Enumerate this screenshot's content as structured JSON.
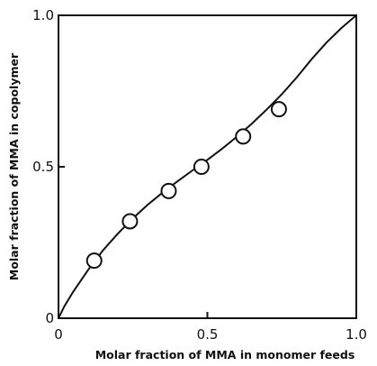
{
  "chart_data": {
    "type": "scatter",
    "title": "",
    "xlabel": "Molar fraction of MMA in monomer feeds",
    "ylabel": "Molar fraction of MMA in copolymer",
    "xlim": [
      0,
      1.0
    ],
    "ylim": [
      0,
      1.0
    ],
    "x_ticks": [
      {
        "value": 0,
        "label": "0"
      },
      {
        "value": 0.5,
        "label": "0.5"
      },
      {
        "value": 1.0,
        "label": "1.0"
      }
    ],
    "y_ticks": [
      {
        "value": 0,
        "label": "0"
      },
      {
        "value": 0.5,
        "label": "0.5"
      },
      {
        "value": 1.0,
        "label": "1.0"
      }
    ],
    "grid": false,
    "series": [
      {
        "marker": "open-circle",
        "x": [
          0.12,
          0.24,
          0.37,
          0.48,
          0.62,
          0.74
        ],
        "y": [
          0.19,
          0.32,
          0.42,
          0.5,
          0.6,
          0.69
        ]
      }
    ],
    "fitted_curve": {
      "style": "solid",
      "x": [
        0.0,
        0.02,
        0.05,
        0.1,
        0.15,
        0.2,
        0.25,
        0.3,
        0.35,
        0.4,
        0.45,
        0.5,
        0.55,
        0.6,
        0.65,
        0.7,
        0.75,
        0.8,
        0.85,
        0.9,
        0.95,
        1.0
      ],
      "y": [
        0.0,
        0.04,
        0.088,
        0.16,
        0.225,
        0.28,
        0.33,
        0.375,
        0.415,
        0.452,
        0.488,
        0.523,
        0.56,
        0.6,
        0.643,
        0.69,
        0.74,
        0.795,
        0.855,
        0.91,
        0.958,
        1.0
      ]
    }
  }
}
